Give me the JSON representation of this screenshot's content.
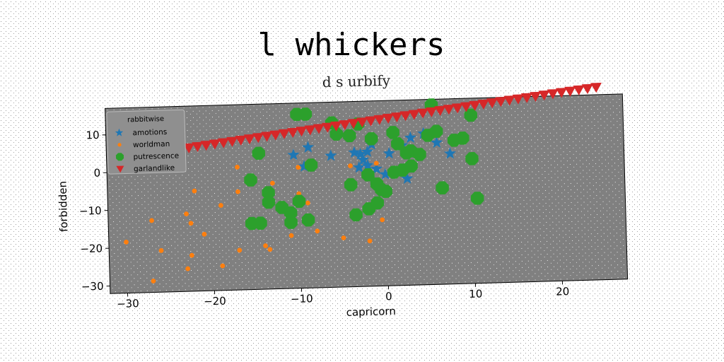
{
  "chart_data": {
    "type": "scatter",
    "title": "l whickers",
    "subtitle": "d s urbify",
    "xlabel": "capricorn",
    "ylabel": "forbidden",
    "xlim": [
      -32,
      27.5
    ],
    "ylim": [
      -32,
      17
    ],
    "xticks": [
      -30,
      -20,
      -10,
      0,
      10,
      20
    ],
    "yticks": [
      -30,
      -20,
      -10,
      0,
      10
    ],
    "xtick_labels": [
      "−30",
      "−20",
      "−10",
      "0",
      "10",
      "20"
    ],
    "ytick_labels": [
      "−30",
      "−20",
      "−10",
      "0",
      "10"
    ],
    "grid": false,
    "legend_title": "rabbitwise",
    "legend_position": "top-left",
    "background": "#808080",
    "series": [
      {
        "name": "amotions",
        "marker": "star",
        "color": "#1f77b4",
        "points": [
          [
            -10.5,
            3.3
          ],
          [
            -8.8,
            5.2
          ],
          [
            -9.3,
            0.2
          ],
          [
            -6.2,
            2.8
          ],
          [
            -3.5,
            3.5
          ],
          [
            -2.8,
            3.0
          ],
          [
            -2.0,
            3.6
          ],
          [
            -2.5,
            1.5
          ],
          [
            -1.5,
            5.5
          ],
          [
            0.5,
            3.0
          ],
          [
            2.0,
            5.0
          ],
          [
            3.0,
            7.0
          ],
          [
            4.5,
            8.0
          ],
          [
            6.0,
            5.5
          ],
          [
            7.5,
            2.5
          ],
          [
            2.5,
            -3.8
          ],
          [
            -3.0,
            -0.5
          ],
          [
            -2.0,
            0.0
          ],
          [
            -1.0,
            -1.0
          ],
          [
            0.0,
            -2.5
          ]
        ]
      },
      {
        "name": "worldman",
        "marker": "circle",
        "color": "#ff7f0e",
        "points": [
          [
            -30.0,
            -18.5
          ],
          [
            -27.0,
            -29.0
          ],
          [
            -26.0,
            -21.0
          ],
          [
            -27.0,
            -13.0
          ],
          [
            -23.0,
            -11.5
          ],
          [
            -22.5,
            -14.0
          ],
          [
            -23.0,
            -26.0
          ],
          [
            -22.5,
            -22.5
          ],
          [
            -21.0,
            -17.0
          ],
          [
            -22.0,
            -5.5
          ],
          [
            -19.0,
            -25.5
          ],
          [
            -19.0,
            -9.5
          ],
          [
            -17.0,
            -21.5
          ],
          [
            -17.0,
            -6.0
          ],
          [
            -17.0,
            0.5
          ],
          [
            -14.0,
            -20.5
          ],
          [
            -13.5,
            -21.5
          ],
          [
            -13.0,
            -4.0
          ],
          [
            -11.0,
            -18.0
          ],
          [
            -10.0,
            -7.0
          ],
          [
            -9.0,
            -9.5
          ],
          [
            -8.0,
            -17.0
          ],
          [
            -10.0,
            0.0
          ],
          [
            -5.0,
            -19.0
          ],
          [
            -4.0,
            0.0
          ],
          [
            -2.0,
            -20.0
          ],
          [
            -1.0,
            0.5
          ],
          [
            -0.5,
            -14.5
          ]
        ]
      },
      {
        "name": "putrescence",
        "marker": "octagon",
        "color": "#2ca02c",
        "points": [
          [
            -10.0,
            14.0
          ],
          [
            -9.0,
            14.0
          ],
          [
            -6.0,
            11.5
          ],
          [
            -5.5,
            8.5
          ],
          [
            -4.0,
            8.0
          ],
          [
            -3.0,
            11.0
          ],
          [
            -1.5,
            7.0
          ],
          [
            1.0,
            8.5
          ],
          [
            1.5,
            5.5
          ],
          [
            3.0,
            3.5
          ],
          [
            5.0,
            7.5
          ],
          [
            6.0,
            8.5
          ],
          [
            5.5,
            15.5
          ],
          [
            10.0,
            12.5
          ],
          [
            8.0,
            6.0
          ],
          [
            9.0,
            6.5
          ],
          [
            10.0,
            1.0
          ],
          [
            6.5,
            -6.5
          ],
          [
            10.5,
            -9.5
          ],
          [
            -14.5,
            4.0
          ],
          [
            -15.5,
            -3.0
          ],
          [
            -13.5,
            -6.5
          ],
          [
            -13.5,
            -9.0
          ],
          [
            -12.0,
            -10.5
          ],
          [
            -11.0,
            -12.0
          ],
          [
            -11.0,
            -14.5
          ],
          [
            -10.0,
            -9.0
          ],
          [
            -9.0,
            -14.0
          ],
          [
            -8.5,
            0.5
          ],
          [
            -4.0,
            -5.0
          ],
          [
            -2.0,
            -2.5
          ],
          [
            -1.0,
            -5.0
          ],
          [
            -0.5,
            -6.5
          ],
          [
            0.0,
            -7.0
          ],
          [
            -1.0,
            -10.0
          ],
          [
            -2.0,
            -11.5
          ],
          [
            -3.5,
            -13.0
          ],
          [
            -15.5,
            -14.5
          ],
          [
            -14.5,
            -14.5
          ],
          [
            1.0,
            -2.0
          ],
          [
            2.0,
            -1.5
          ],
          [
            3.0,
            -0.5
          ],
          [
            2.5,
            3.0
          ],
          [
            4.0,
            2.5
          ]
        ]
      },
      {
        "name": "garlandlike",
        "marker": "triangle-down",
        "color": "#d62728",
        "x_start": -22.5,
        "x_end": 24.5,
        "y_start": 6.0,
        "y_end": 19.0,
        "count": 48
      }
    ]
  }
}
